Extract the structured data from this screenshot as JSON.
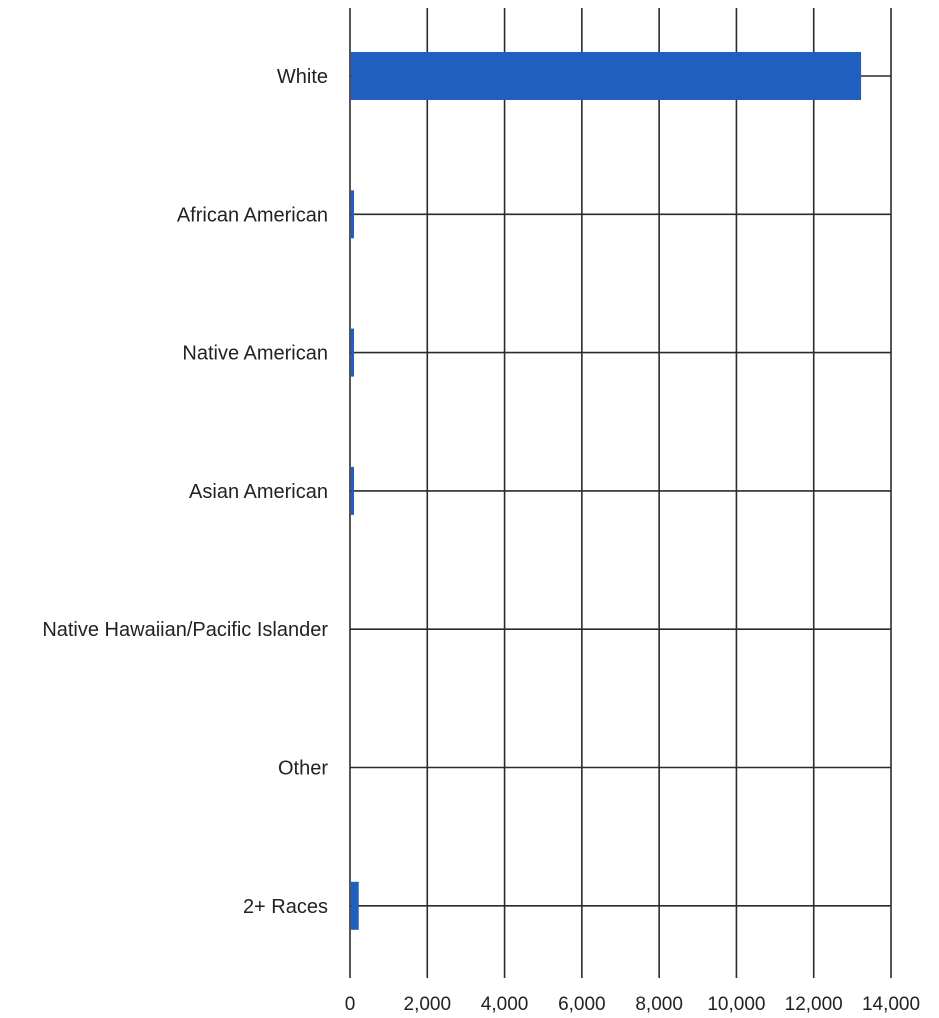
{
  "chart_data": {
    "type": "bar",
    "orientation": "horizontal",
    "categories": [
      "White",
      "African American",
      "Native American",
      "Asian American",
      "Native Hawaiian/Pacific Islander",
      "Other",
      "2+ Races"
    ],
    "values": [
      13200,
      40,
      60,
      20,
      0,
      0,
      200
    ],
    "xlim": [
      0,
      14000
    ],
    "xticks": [
      0,
      2000,
      4000,
      6000,
      8000,
      10000,
      12000,
      14000
    ],
    "xtick_labels": [
      "0",
      "2,000",
      "4,000",
      "6,000",
      "8,000",
      "10,000",
      "12,000",
      "14,000"
    ],
    "grid": true,
    "legend": "none",
    "title": "",
    "xlabel": "",
    "ylabel": "",
    "colors": {
      "bar": "#1f5fbf",
      "grid": "#2b2b2b",
      "text": "#222222"
    }
  }
}
